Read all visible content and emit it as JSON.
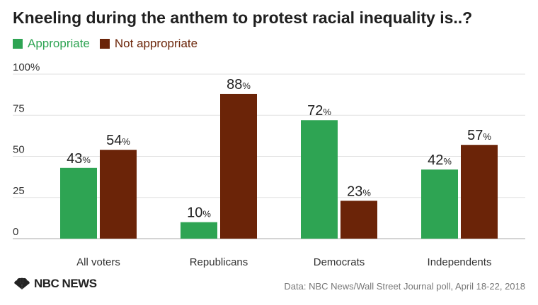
{
  "chart_data": {
    "type": "bar",
    "title": "Kneeling during the anthem to protest racial inequality is..?",
    "categories": [
      "All voters",
      "Republicans",
      "Democrats",
      "Independents"
    ],
    "series": [
      {
        "name": "Appropriate",
        "values": [
          43,
          10,
          72,
          42
        ],
        "color": "#2ea453"
      },
      {
        "name": "Not appropriate",
        "values": [
          54,
          88,
          23,
          57
        ],
        "color": "#6b2408"
      }
    ],
    "value_suffix": "%",
    "ylim": [
      0,
      100
    ],
    "yticks": [
      "0",
      "25",
      "50",
      "75",
      "100%"
    ],
    "legend_position": "top-left",
    "grid": true
  },
  "footer": {
    "logo_text": "NBC NEWS",
    "source": "Data: NBC News/Wall Street Journal poll, April 18-22, 2018"
  },
  "colors": {
    "appropriate": "#2ea453",
    "not_appropriate": "#6b2408",
    "legend_text_green": "#2ea453",
    "legend_text_brown": "#6b2408"
  }
}
